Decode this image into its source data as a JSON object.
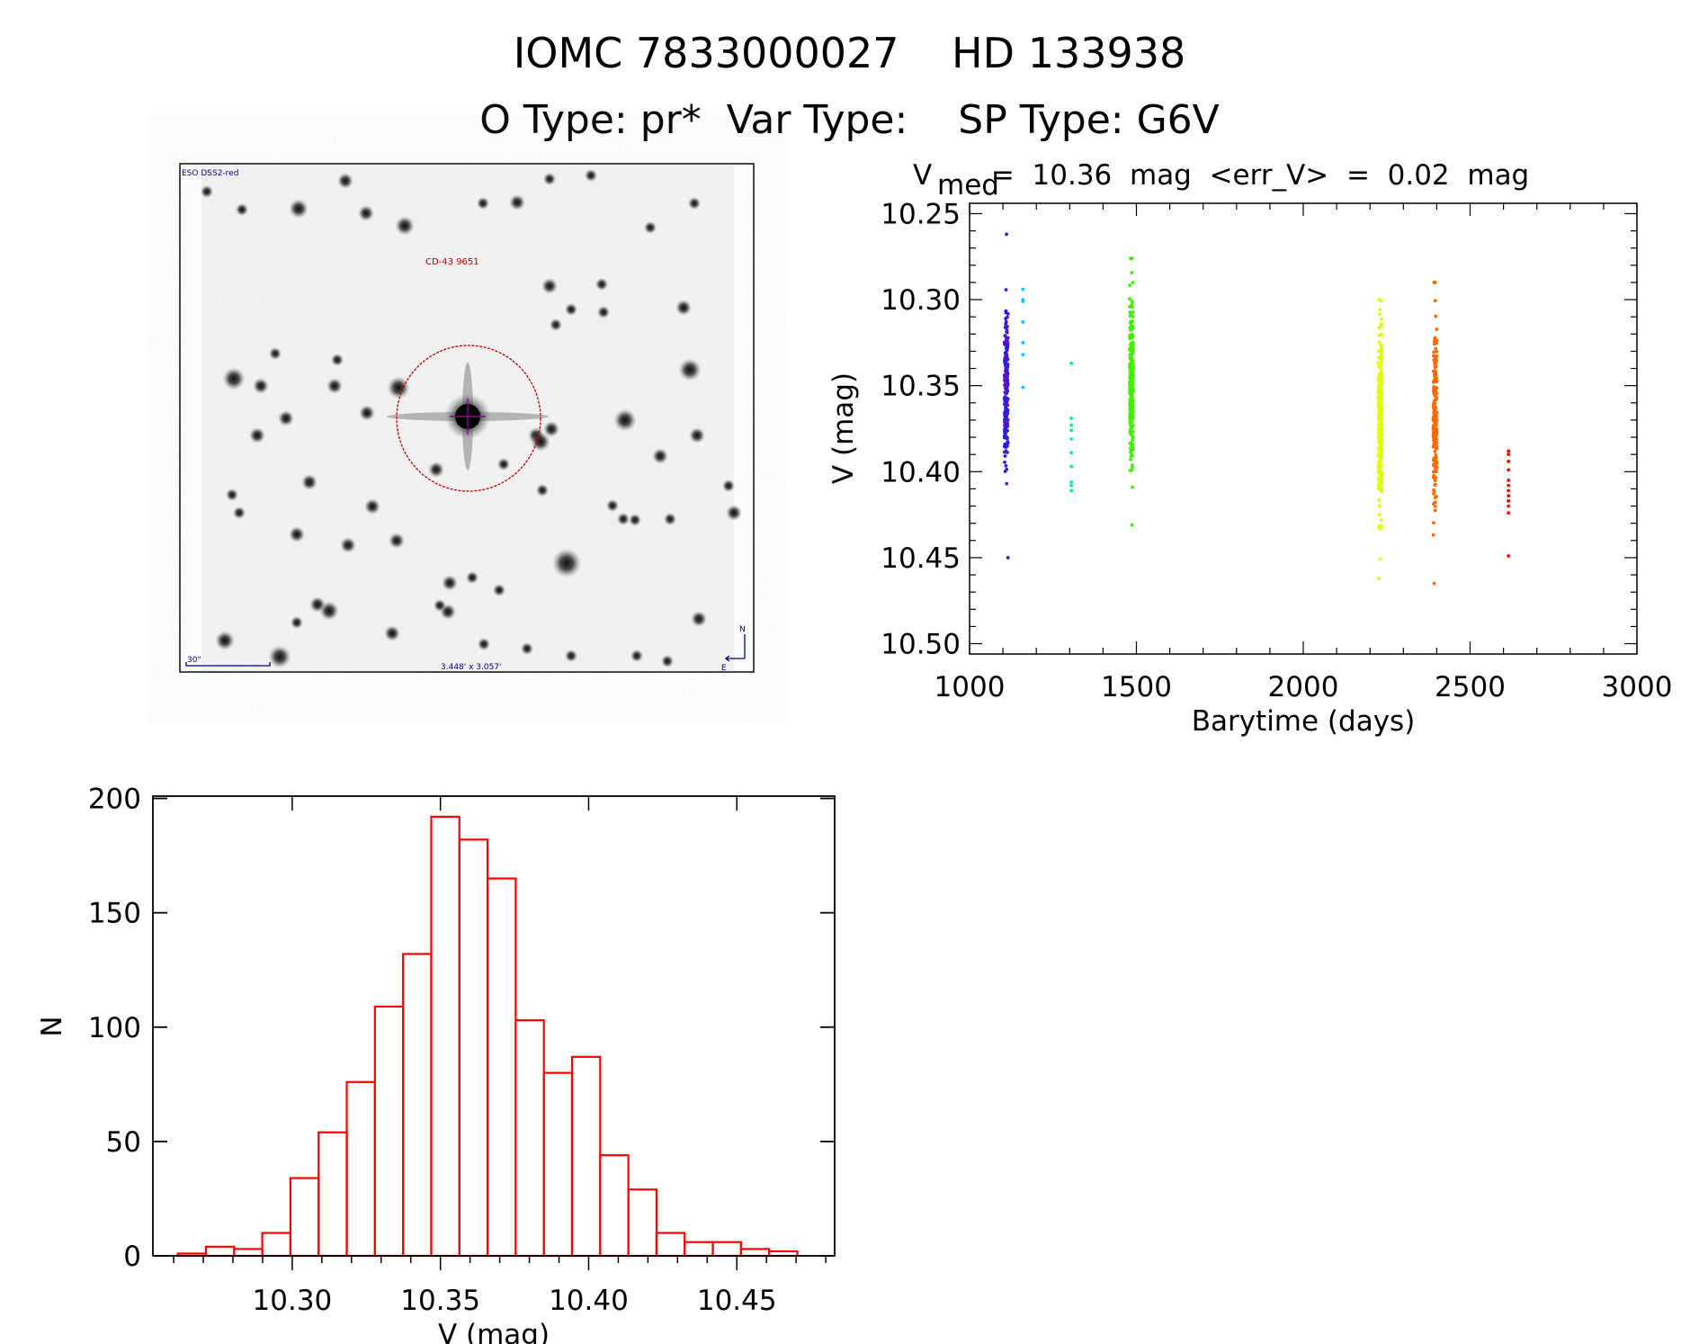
{
  "header": {
    "title_line1": "IOMC 7833000027    HD 133938",
    "title_line2": "O Type: pr*  Var Type:    SP Type: G6V"
  },
  "finder_chart": {
    "survey_label": "ESO DSS2-red",
    "object_label": "CD-43 9651",
    "scale_label": "30\"",
    "field_size_label": "3.448' x 3.057'",
    "north_label": "N",
    "east_label": "E",
    "circle_color": "#c00000",
    "label_color": "#00008b"
  },
  "chart_data": [
    {
      "type": "scatter",
      "title_main": "V",
      "title_sub": "med",
      "title_rest": " =  10.36  mag  <err_V>  =  0.02  mag",
      "xlabel": "Barytime (days)",
      "ylabel": "V (mag)",
      "xlim": [
        1000,
        3000
      ],
      "ylim": [
        10.506,
        10.244
      ],
      "y_inverted": true,
      "xticks": [
        "1000",
        "1500",
        "2000",
        "2500",
        "3000"
      ],
      "yticks": [
        "10.25",
        "10.30",
        "10.35",
        "10.40",
        "10.45",
        "10.50"
      ],
      "grid": false,
      "groups": [
        {
          "x": 1110,
          "color": "#2a1ee0",
          "alt_color": "#6a10b8",
          "count": 220,
          "median": 10.352,
          "sigma": 0.022,
          "min": 10.262,
          "max": 10.45
        },
        {
          "x": 1160,
          "color": "#00c4ff",
          "values": [
            10.294,
            10.3,
            10.301,
            10.313,
            10.325,
            10.332,
            10.351
          ]
        },
        {
          "x": 1305,
          "color": "#00f090",
          "values": [
            10.337,
            10.369,
            10.373,
            10.376,
            10.381,
            10.389,
            10.397,
            10.406,
            10.408,
            10.411
          ]
        },
        {
          "x": 1485,
          "color": "#44ee00",
          "count": 260,
          "median": 10.348,
          "sigma": 0.022,
          "min": 10.276,
          "max": 10.431
        },
        {
          "x": 2230,
          "color": "#ddff00",
          "count": 260,
          "median": 10.372,
          "sigma": 0.025,
          "min": 10.3,
          "max": 10.462
        },
        {
          "x": 2395,
          "color": "#ff6a00",
          "count": 210,
          "median": 10.37,
          "sigma": 0.028,
          "min": 10.29,
          "max": 10.465
        },
        {
          "x": 2615,
          "color": "#ff0000",
          "values": [
            10.388,
            10.39,
            10.394,
            10.399,
            10.405,
            10.408,
            10.411,
            10.414,
            10.417,
            10.42,
            10.424,
            10.449
          ]
        }
      ]
    },
    {
      "type": "bar",
      "subtype": "histogram",
      "xlabel": "V (mag)",
      "ylabel": "N",
      "xlim": [
        10.253,
        10.483
      ],
      "ylim": [
        0,
        201
      ],
      "xticks": [
        "10.30",
        "10.35",
        "10.40",
        "10.45"
      ],
      "yticks": [
        "0",
        "50",
        "100",
        "150",
        "200"
      ],
      "bin_start": 10.2614,
      "bin_width": 0.0095,
      "values": [
        1,
        4,
        3,
        10,
        34,
        54,
        76,
        109,
        132,
        192,
        182,
        165,
        103,
        80,
        87,
        44,
        29,
        10,
        6,
        6,
        3,
        2
      ],
      "color": "#ff0000",
      "grid": false
    }
  ]
}
